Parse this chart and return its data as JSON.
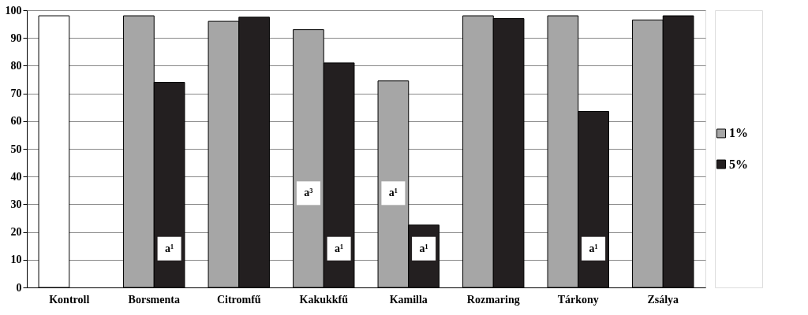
{
  "chart_data": {
    "type": "bar",
    "categories": [
      "Kontroll",
      "Borsmenta",
      "Citromfű",
      "Kakukkfű",
      "Kamilla",
      "Rozmaring",
      "Tárkony",
      "Zsálya"
    ],
    "series": [
      {
        "name": "1%",
        "color": "#a6a6a6",
        "colors": [
          "#ffffff",
          "#a6a6a6",
          "#a6a6a6",
          "#a6a6a6",
          "#a6a6a6",
          "#a6a6a6",
          "#a6a6a6",
          "#a6a6a6"
        ],
        "values": [
          98,
          98,
          96,
          93,
          74.5,
          98,
          98,
          96.5
        ],
        "value_labels": [
          null,
          null,
          null,
          "a³",
          "a¹",
          null,
          null,
          null
        ]
      },
      {
        "name": "5%",
        "color": "#231f20",
        "values": [
          null,
          74,
          97.5,
          81,
          22.5,
          97,
          63.5,
          98
        ],
        "value_labels": [
          null,
          "a¹",
          null,
          "a¹",
          "a¹",
          null,
          "a¹",
          null
        ]
      }
    ],
    "ylim": [
      0,
      100
    ],
    "yticks": [
      0,
      10,
      20,
      30,
      40,
      50,
      60,
      70,
      80,
      90,
      100
    ],
    "grid": "y",
    "legend": "right"
  }
}
